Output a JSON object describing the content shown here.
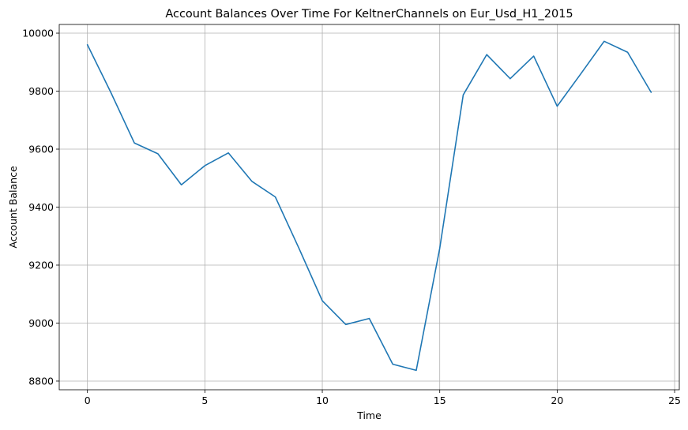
{
  "chart_data": {
    "type": "line",
    "title": "Account Balances Over Time For KeltnerChannels on Eur_Usd_H1_2015",
    "xlabel": "Time",
    "ylabel": "Account Balance",
    "xlim": [
      -1.2,
      25.2
    ],
    "ylim": [
      8770,
      10030
    ],
    "xticks": [
      0,
      5,
      10,
      15,
      20,
      25
    ],
    "yticks": [
      8800,
      9000,
      9200,
      9400,
      9600,
      9800,
      10000
    ],
    "grid": true,
    "legend": "none",
    "series": [
      {
        "color": "#1f77b4",
        "x": [
          0,
          1,
          2,
          3,
          4,
          5,
          6,
          7,
          8,
          9,
          10,
          11,
          12,
          13,
          14,
          15,
          16,
          17,
          18,
          19,
          20,
          21,
          22,
          23,
          24
        ],
        "y": [
          9960,
          9795,
          9621,
          9584,
          9477,
          9543,
          9587,
          9489,
          9435,
          9259,
          9077,
          8995,
          9016,
          8858,
          8837,
          9258,
          9787,
          9926,
          9843,
          9921,
          9748,
          9859,
          9972,
          9934,
          9796
        ]
      }
    ]
  }
}
